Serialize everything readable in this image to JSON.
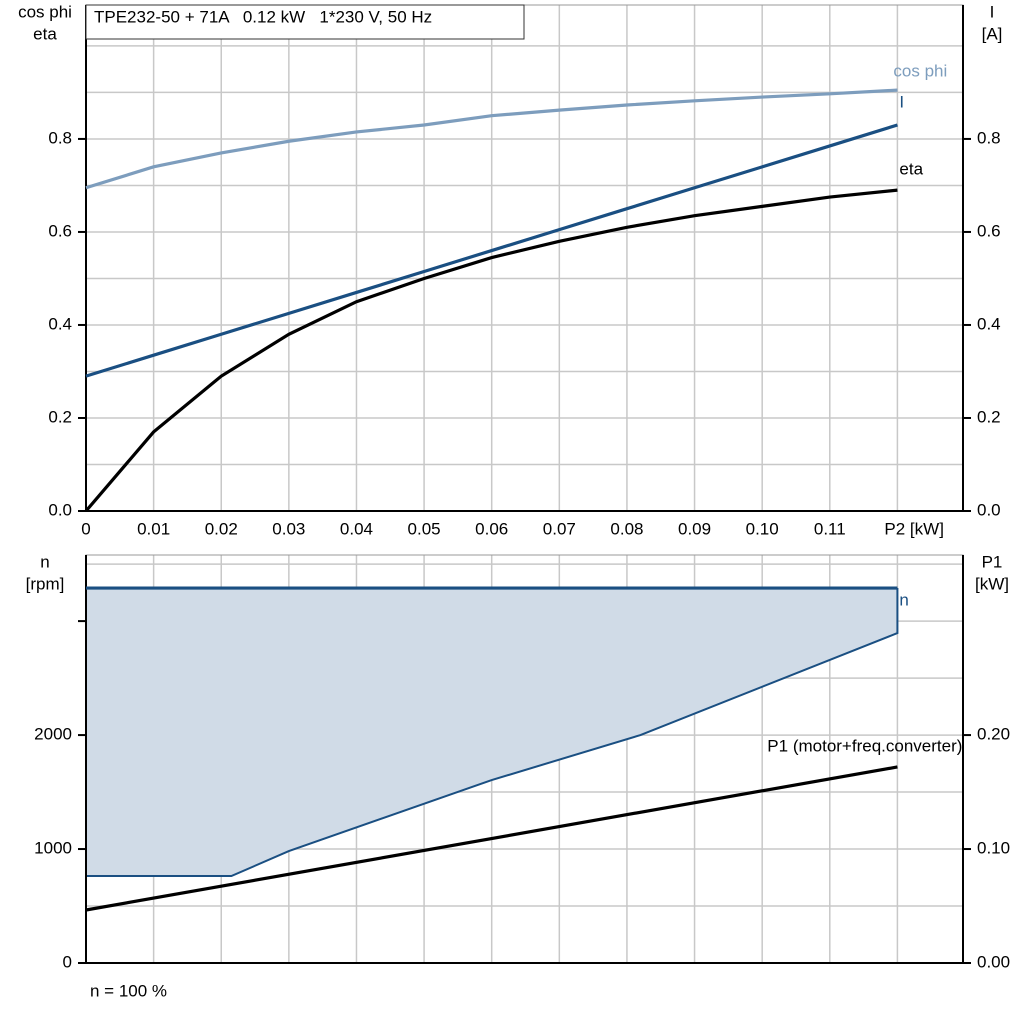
{
  "chart_data": [
    {
      "type": "line",
      "title": "TPE232-50 + 71A   0.12 kW   1*230 V, 50 Hz",
      "y_label": [
        "cos phi",
        "eta"
      ],
      "y2_label": [
        "I",
        "[A]"
      ],
      "xlim": [
        0,
        0.1297
      ],
      "xticks": [
        0,
        0.01,
        0.02,
        0.03,
        0.04,
        0.05,
        0.06,
        0.07,
        0.08,
        0.09,
        {
          "value": 0.1,
          "label": "0.10"
        },
        0.11,
        {
          "value": 0.12,
          "label": "P2 [kW]"
        }
      ],
      "x_tick_labels": true,
      "ylim": [
        0,
        1.088
      ],
      "yticks": [
        {
          "value": 0,
          "label": "0.0"
        },
        0.2,
        0.4,
        0.6,
        0.8
      ],
      "y2ticks": [
        {
          "value": 0,
          "label": "0.0"
        },
        0.2,
        0.4,
        0.6,
        0.8
      ],
      "ygrid": [
        0.1,
        0.2,
        0.3,
        0.4,
        0.5,
        0.6,
        0.7,
        0.8,
        0.9,
        1.0
      ],
      "grid": true,
      "x": [
        0,
        0.01,
        0.02,
        0.03,
        0.04,
        0.05,
        0.06,
        0.07,
        0.08,
        0.09,
        0.1,
        0.11,
        0.12
      ],
      "series": [
        {
          "name": "cos phi",
          "color": "#7d9dbd",
          "values": [
            0.695,
            0.74,
            0.77,
            0.795,
            0.815,
            0.83,
            0.85,
            0.862,
            0.873,
            0.882,
            0.89,
            0.897,
            0.905
          ]
        },
        {
          "name": "I",
          "color": "#1a4f82",
          "axis": "y2",
          "values": [
            0.29,
            0.335,
            0.38,
            0.425,
            0.47,
            0.515,
            0.56,
            0.605,
            0.65,
            0.695,
            0.74,
            0.785,
            0.83
          ]
        },
        {
          "name": "eta",
          "color": "#000000",
          "values": [
            0,
            0.17,
            0.29,
            0.38,
            0.45,
            0.5,
            0.545,
            0.58,
            0.61,
            0.635,
            0.655,
            0.675,
            0.69
          ]
        }
      ]
    },
    {
      "type": "line",
      "y_label": [
        "n",
        "[rpm]"
      ],
      "y2_label": [
        "P1",
        "[kW]"
      ],
      "footnote": "n = 100 %",
      "xlim": [
        0,
        0.1297
      ],
      "xticks": [
        0,
        0.01,
        0.02,
        0.03,
        0.04,
        0.05,
        0.06,
        0.07,
        0.08,
        0.09,
        0.1,
        0.11,
        0.12
      ],
      "x_tick_labels": false,
      "ylim": [
        0,
        3580
      ],
      "yticks": [
        0,
        1000,
        2000
      ],
      "y_minor_ticks": [
        3000
      ],
      "y2lim": [
        0,
        0.358
      ],
      "y2ticks": [
        {
          "value": 0,
          "label": "0.00"
        },
        {
          "value": 0.1,
          "label": "0.10"
        },
        {
          "value": 0.2,
          "label": "0.20"
        }
      ],
      "ygrid": [
        500,
        1000,
        1500,
        2000,
        2500,
        3000,
        3500
      ],
      "grid": true,
      "area": {
        "color": "#d0dbe7",
        "edge_color": "#1a4f82",
        "x": [
          0,
          0.0215,
          0.03,
          0.06,
          0.082,
          0.12
        ],
        "lower": [
          763,
          763,
          982,
          1605,
          2000,
          2895
        ]
      },
      "series": [
        {
          "name": "n",
          "color": "#1a4f82",
          "x": [
            0,
            0.12
          ],
          "values": [
            3290,
            3290
          ]
        },
        {
          "name": "P1 (motor+freq.converter)",
          "color": "#000000",
          "axis": "y2",
          "x": [
            0,
            0.12
          ],
          "values": [
            0.0465,
            0.172
          ]
        }
      ]
    }
  ]
}
